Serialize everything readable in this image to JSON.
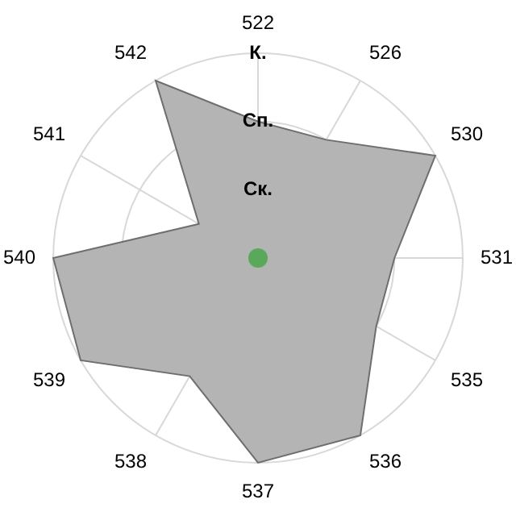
{
  "chart_data": {
    "type": "radar",
    "categories": [
      "522",
      "526",
      "530",
      "531",
      "535",
      "536",
      "537",
      "538",
      "539",
      "540",
      "541",
      "542"
    ],
    "series": [
      {
        "type": "radar",
        "color": "#b4b4b4",
        "values": [
          2,
          2,
          3,
          2,
          2,
          3,
          3,
          2,
          3,
          3,
          1,
          3
        ]
      }
    ],
    "ylim": [
      0,
      3
    ],
    "yticks": [
      {
        "value": 1,
        "label": "Ск."
      },
      {
        "value": 2,
        "label": "Сп."
      },
      {
        "value": 3,
        "label": "К."
      }
    ],
    "grid": true,
    "legend": false
  }
}
